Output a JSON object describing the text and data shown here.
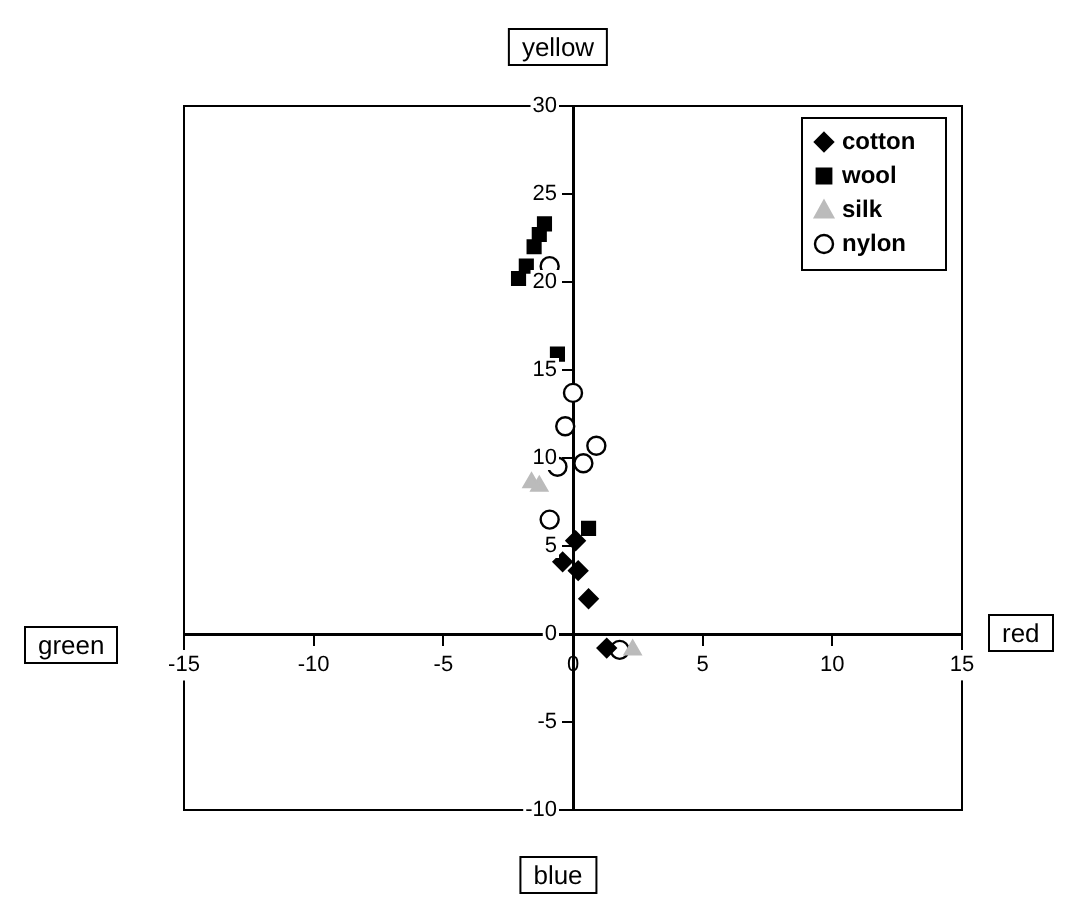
{
  "chart_data": {
    "type": "scatter",
    "annotations": [
      "yellow",
      "blue",
      "green",
      "red"
    ],
    "xlim": [
      -15,
      15
    ],
    "xticks": [
      -15,
      -10,
      -5,
      0,
      5,
      10,
      15
    ],
    "ylim": [
      -10,
      30
    ],
    "yticks": [
      -10,
      -5,
      0,
      5,
      10,
      15,
      20,
      25,
      30
    ],
    "legend": "top right",
    "grid": false,
    "series": [
      {
        "name": "cotton",
        "color": "#000000",
        "marker": "diamond",
        "x": [
          0.1,
          -0.4,
          0.2,
          0.6,
          1.3
        ],
        "values": [
          5.3,
          4.1,
          3.6,
          2.0,
          -0.8
        ]
      },
      {
        "name": "wool",
        "color": "#000000",
        "marker": "square",
        "x": [
          -1.1,
          -1.3,
          -1.5,
          -1.8,
          -2.1,
          -0.6,
          0.6
        ],
        "values": [
          23.3,
          22.7,
          22.0,
          20.9,
          20.2,
          15.9,
          6.0
        ]
      },
      {
        "name": "silk",
        "color": "#bbbbbb",
        "marker": "triangle",
        "x": [
          -1.3,
          -1.6,
          2.3
        ],
        "values": [
          8.4,
          8.6,
          -0.9
        ]
      },
      {
        "name": "nylon",
        "color": "#000000",
        "marker": "circle",
        "x": [
          -0.9,
          0,
          -0.3,
          0.9,
          -0.6,
          0.4,
          -0.9,
          1.8
        ],
        "values": [
          20.9,
          13.7,
          11.8,
          10.7,
          9.5,
          9.7,
          6.5,
          -0.9
        ]
      }
    ]
  }
}
